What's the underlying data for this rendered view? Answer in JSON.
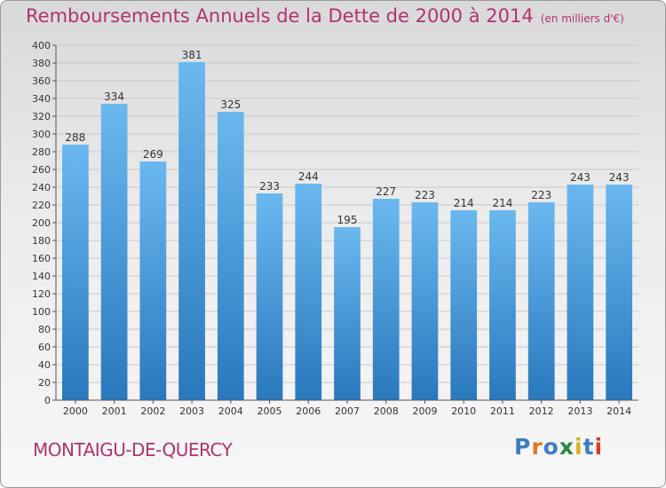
{
  "header": {
    "title": "Remboursements Annuels de la Dette de 2000 à 2014",
    "unit": "(en milliers d'€)"
  },
  "footer": {
    "city": "MONTAIGU-DE-QUERCY",
    "logo": {
      "letters": [
        "P",
        "r",
        "o",
        "x",
        "i",
        "t",
        "i"
      ],
      "colors": [
        "#3a7fc4",
        "#e07a1e",
        "#3a7fc4",
        "#2a8a3a",
        "#d8b020",
        "#3a7fc4",
        "#d04020"
      ]
    }
  },
  "colors": {
    "title": "#b0336f",
    "bar_light": "#6bb8f0",
    "bar_dark": "#2a78bd",
    "grid": "#c8c8c8",
    "axis_text": "#333333"
  },
  "chart_data": {
    "type": "bar",
    "title": "Remboursements Annuels de la Dette de 2000 à 2014",
    "xlabel": "",
    "ylabel": "",
    "categories": [
      "2000",
      "2001",
      "2002",
      "2003",
      "2004",
      "2005",
      "2006",
      "2007",
      "2008",
      "2009",
      "2010",
      "2011",
      "2012",
      "2013",
      "2014"
    ],
    "values": [
      288,
      334,
      269,
      381,
      325,
      233,
      244,
      195,
      227,
      223,
      214,
      214,
      223,
      243,
      243
    ],
    "ylim": [
      0,
      400
    ],
    "ytick_step": 20,
    "grid": true,
    "legend": "none"
  }
}
